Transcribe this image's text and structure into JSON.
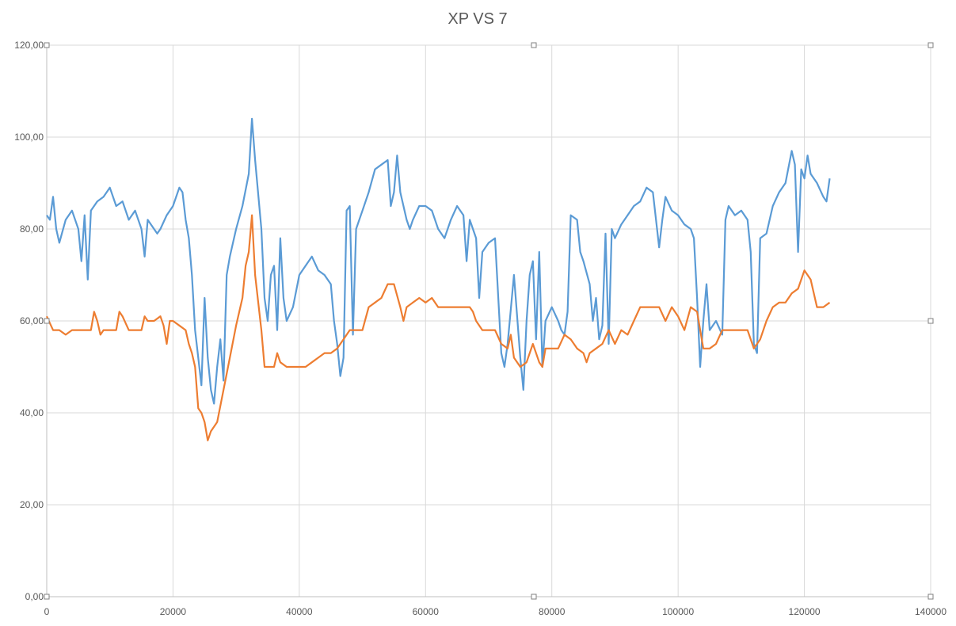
{
  "chart_data": {
    "type": "line",
    "title": "XP VS 7",
    "xlabel": "",
    "ylabel": "",
    "xlim": [
      0,
      140000
    ],
    "ylim": [
      0,
      120
    ],
    "x_ticks": [
      "0",
      "20000",
      "40000",
      "60000",
      "80000",
      "100000",
      "120000",
      "140000"
    ],
    "y_ticks": [
      "0,00",
      "20,00",
      "40,00",
      "60,00",
      "80,00",
      "100,00",
      "120,00"
    ],
    "grid": true,
    "legend": "none",
    "series": [
      {
        "name": "XP",
        "color": "#5b9bd5",
        "points": [
          [
            0,
            83
          ],
          [
            500,
            82
          ],
          [
            1000,
            87
          ],
          [
            1500,
            80
          ],
          [
            2000,
            77
          ],
          [
            3000,
            82
          ],
          [
            4000,
            84
          ],
          [
            5000,
            80
          ],
          [
            5500,
            73
          ],
          [
            6000,
            83
          ],
          [
            6500,
            69
          ],
          [
            7000,
            84
          ],
          [
            8000,
            86
          ],
          [
            9000,
            87
          ],
          [
            10000,
            89
          ],
          [
            11000,
            85
          ],
          [
            12000,
            86
          ],
          [
            13000,
            82
          ],
          [
            14000,
            84
          ],
          [
            15000,
            80
          ],
          [
            15500,
            74
          ],
          [
            16000,
            82
          ],
          [
            17000,
            80
          ],
          [
            17500,
            79
          ],
          [
            18000,
            80
          ],
          [
            19000,
            83
          ],
          [
            20000,
            85
          ],
          [
            21000,
            89
          ],
          [
            21500,
            88
          ],
          [
            22000,
            82
          ],
          [
            22500,
            78
          ],
          [
            23000,
            70
          ],
          [
            23500,
            58
          ],
          [
            24000,
            52
          ],
          [
            24500,
            46
          ],
          [
            25000,
            65
          ],
          [
            25500,
            52
          ],
          [
            26000,
            45
          ],
          [
            26500,
            42
          ],
          [
            27000,
            50
          ],
          [
            27500,
            56
          ],
          [
            28000,
            47
          ],
          [
            28500,
            70
          ],
          [
            29000,
            74
          ],
          [
            30000,
            80
          ],
          [
            31000,
            85
          ],
          [
            32000,
            92
          ],
          [
            32500,
            104
          ],
          [
            33000,
            95
          ],
          [
            34000,
            80
          ],
          [
            34500,
            65
          ],
          [
            35000,
            60
          ],
          [
            35500,
            70
          ],
          [
            36000,
            72
          ],
          [
            36500,
            58
          ],
          [
            37000,
            78
          ],
          [
            37500,
            65
          ],
          [
            38000,
            60
          ],
          [
            39000,
            63
          ],
          [
            40000,
            70
          ],
          [
            41000,
            72
          ],
          [
            42000,
            74
          ],
          [
            43000,
            71
          ],
          [
            44000,
            70
          ],
          [
            45000,
            68
          ],
          [
            45500,
            60
          ],
          [
            46000,
            55
          ],
          [
            46500,
            48
          ],
          [
            47000,
            52
          ],
          [
            47500,
            84
          ],
          [
            48000,
            85
          ],
          [
            48500,
            57
          ],
          [
            49000,
            80
          ],
          [
            50000,
            84
          ],
          [
            51000,
            88
          ],
          [
            52000,
            93
          ],
          [
            53000,
            94
          ],
          [
            54000,
            95
          ],
          [
            54500,
            85
          ],
          [
            55000,
            88
          ],
          [
            55500,
            96
          ],
          [
            56000,
            88
          ],
          [
            57000,
            82
          ],
          [
            57500,
            80
          ],
          [
            58000,
            82
          ],
          [
            59000,
            85
          ],
          [
            60000,
            85
          ],
          [
            61000,
            84
          ],
          [
            62000,
            80
          ],
          [
            63000,
            78
          ],
          [
            64000,
            82
          ],
          [
            65000,
            85
          ],
          [
            66000,
            83
          ],
          [
            66500,
            73
          ],
          [
            67000,
            82
          ],
          [
            68000,
            78
          ],
          [
            68500,
            65
          ],
          [
            69000,
            75
          ],
          [
            70000,
            77
          ],
          [
            71000,
            78
          ],
          [
            72000,
            53
          ],
          [
            72500,
            50
          ],
          [
            73000,
            55
          ],
          [
            74000,
            70
          ],
          [
            75000,
            52
          ],
          [
            75500,
            45
          ],
          [
            76000,
            60
          ],
          [
            76500,
            70
          ],
          [
            77000,
            73
          ],
          [
            77500,
            56
          ],
          [
            78000,
            75
          ],
          [
            78500,
            50
          ],
          [
            79000,
            60
          ],
          [
            80000,
            63
          ],
          [
            81000,
            60
          ],
          [
            81500,
            58
          ],
          [
            82000,
            57
          ],
          [
            82500,
            62
          ],
          [
            83000,
            83
          ],
          [
            84000,
            82
          ],
          [
            84500,
            75
          ],
          [
            85000,
            73
          ],
          [
            86000,
            68
          ],
          [
            86500,
            60
          ],
          [
            87000,
            65
          ],
          [
            87500,
            56
          ],
          [
            88000,
            59
          ],
          [
            88500,
            79
          ],
          [
            89000,
            55
          ],
          [
            89500,
            80
          ],
          [
            90000,
            78
          ],
          [
            91000,
            81
          ],
          [
            92000,
            83
          ],
          [
            93000,
            85
          ],
          [
            94000,
            86
          ],
          [
            95000,
            89
          ],
          [
            96000,
            88
          ],
          [
            97000,
            76
          ],
          [
            97500,
            82
          ],
          [
            98000,
            87
          ],
          [
            99000,
            84
          ],
          [
            100000,
            83
          ],
          [
            101000,
            81
          ],
          [
            102000,
            80
          ],
          [
            102500,
            78
          ],
          [
            103000,
            65
          ],
          [
            103500,
            50
          ],
          [
            104000,
            60
          ],
          [
            104500,
            68
          ],
          [
            105000,
            58
          ],
          [
            106000,
            60
          ],
          [
            107000,
            57
          ],
          [
            107500,
            82
          ],
          [
            108000,
            85
          ],
          [
            109000,
            83
          ],
          [
            110000,
            84
          ],
          [
            111000,
            82
          ],
          [
            111500,
            75
          ],
          [
            112000,
            55
          ],
          [
            112500,
            53
          ],
          [
            113000,
            78
          ],
          [
            114000,
            79
          ],
          [
            115000,
            85
          ],
          [
            116000,
            88
          ],
          [
            117000,
            90
          ],
          [
            118000,
            97
          ],
          [
            118500,
            94
          ],
          [
            119000,
            75
          ],
          [
            119500,
            93
          ],
          [
            120000,
            91
          ],
          [
            120500,
            96
          ],
          [
            121000,
            92
          ],
          [
            122000,
            90
          ],
          [
            123000,
            87
          ],
          [
            123500,
            86
          ],
          [
            124000,
            91
          ]
        ]
      },
      {
        "name": "7",
        "color": "#ed7d31",
        "points": [
          [
            0,
            61
          ],
          [
            1000,
            58
          ],
          [
            2000,
            58
          ],
          [
            3000,
            57
          ],
          [
            4000,
            58
          ],
          [
            5000,
            58
          ],
          [
            6000,
            58
          ],
          [
            7000,
            58
          ],
          [
            7500,
            62
          ],
          [
            8000,
            60
          ],
          [
            8500,
            57
          ],
          [
            9000,
            58
          ],
          [
            10000,
            58
          ],
          [
            11000,
            58
          ],
          [
            11500,
            62
          ],
          [
            12000,
            61
          ],
          [
            13000,
            58
          ],
          [
            14000,
            58
          ],
          [
            15000,
            58
          ],
          [
            15500,
            61
          ],
          [
            16000,
            60
          ],
          [
            17000,
            60
          ],
          [
            18000,
            61
          ],
          [
            18500,
            59
          ],
          [
            19000,
            55
          ],
          [
            19500,
            60
          ],
          [
            20000,
            60
          ],
          [
            21000,
            59
          ],
          [
            22000,
            58
          ],
          [
            22500,
            55
          ],
          [
            23000,
            53
          ],
          [
            23500,
            50
          ],
          [
            24000,
            41
          ],
          [
            24500,
            40
          ],
          [
            25000,
            38
          ],
          [
            25500,
            34
          ],
          [
            26000,
            36
          ],
          [
            27000,
            38
          ],
          [
            28000,
            45
          ],
          [
            29000,
            52
          ],
          [
            30000,
            59
          ],
          [
            31000,
            65
          ],
          [
            31500,
            72
          ],
          [
            32000,
            75
          ],
          [
            32500,
            83
          ],
          [
            33000,
            70
          ],
          [
            34000,
            58
          ],
          [
            34500,
            50
          ],
          [
            35000,
            50
          ],
          [
            36000,
            50
          ],
          [
            36500,
            53
          ],
          [
            37000,
            51
          ],
          [
            38000,
            50
          ],
          [
            39000,
            50
          ],
          [
            40000,
            50
          ],
          [
            41000,
            50
          ],
          [
            42000,
            51
          ],
          [
            43000,
            52
          ],
          [
            44000,
            53
          ],
          [
            45000,
            53
          ],
          [
            46000,
            54
          ],
          [
            47000,
            56
          ],
          [
            48000,
            58
          ],
          [
            49000,
            58
          ],
          [
            50000,
            58
          ],
          [
            51000,
            63
          ],
          [
            52000,
            64
          ],
          [
            53000,
            65
          ],
          [
            54000,
            68
          ],
          [
            55000,
            68
          ],
          [
            56000,
            63
          ],
          [
            56500,
            60
          ],
          [
            57000,
            63
          ],
          [
            58000,
            64
          ],
          [
            59000,
            65
          ],
          [
            60000,
            64
          ],
          [
            61000,
            65
          ],
          [
            62000,
            63
          ],
          [
            63000,
            63
          ],
          [
            64000,
            63
          ],
          [
            65000,
            63
          ],
          [
            66000,
            63
          ],
          [
            67000,
            63
          ],
          [
            67500,
            62
          ],
          [
            68000,
            60
          ],
          [
            69000,
            58
          ],
          [
            70000,
            58
          ],
          [
            71000,
            58
          ],
          [
            72000,
            55
          ],
          [
            73000,
            54
          ],
          [
            73500,
            57
          ],
          [
            74000,
            52
          ],
          [
            75000,
            50
          ],
          [
            76000,
            51
          ],
          [
            77000,
            55
          ],
          [
            78000,
            51
          ],
          [
            78500,
            50
          ],
          [
            79000,
            54
          ],
          [
            80000,
            54
          ],
          [
            81000,
            54
          ],
          [
            82000,
            57
          ],
          [
            83000,
            56
          ],
          [
            84000,
            54
          ],
          [
            85000,
            53
          ],
          [
            85500,
            51
          ],
          [
            86000,
            53
          ],
          [
            87000,
            54
          ],
          [
            88000,
            55
          ],
          [
            89000,
            58
          ],
          [
            90000,
            55
          ],
          [
            91000,
            58
          ],
          [
            92000,
            57
          ],
          [
            93000,
            60
          ],
          [
            94000,
            63
          ],
          [
            95000,
            63
          ],
          [
            96000,
            63
          ],
          [
            97000,
            63
          ],
          [
            98000,
            60
          ],
          [
            99000,
            63
          ],
          [
            100000,
            61
          ],
          [
            101000,
            58
          ],
          [
            102000,
            63
          ],
          [
            103000,
            62
          ],
          [
            104000,
            54
          ],
          [
            105000,
            54
          ],
          [
            106000,
            55
          ],
          [
            107000,
            58
          ],
          [
            108000,
            58
          ],
          [
            109000,
            58
          ],
          [
            110000,
            58
          ],
          [
            111000,
            58
          ],
          [
            112000,
            54
          ],
          [
            113000,
            56
          ],
          [
            114000,
            60
          ],
          [
            115000,
            63
          ],
          [
            116000,
            64
          ],
          [
            117000,
            64
          ],
          [
            118000,
            66
          ],
          [
            119000,
            67
          ],
          [
            120000,
            71
          ],
          [
            121000,
            69
          ],
          [
            122000,
            63
          ],
          [
            123000,
            63
          ],
          [
            124000,
            64
          ]
        ]
      }
    ]
  }
}
